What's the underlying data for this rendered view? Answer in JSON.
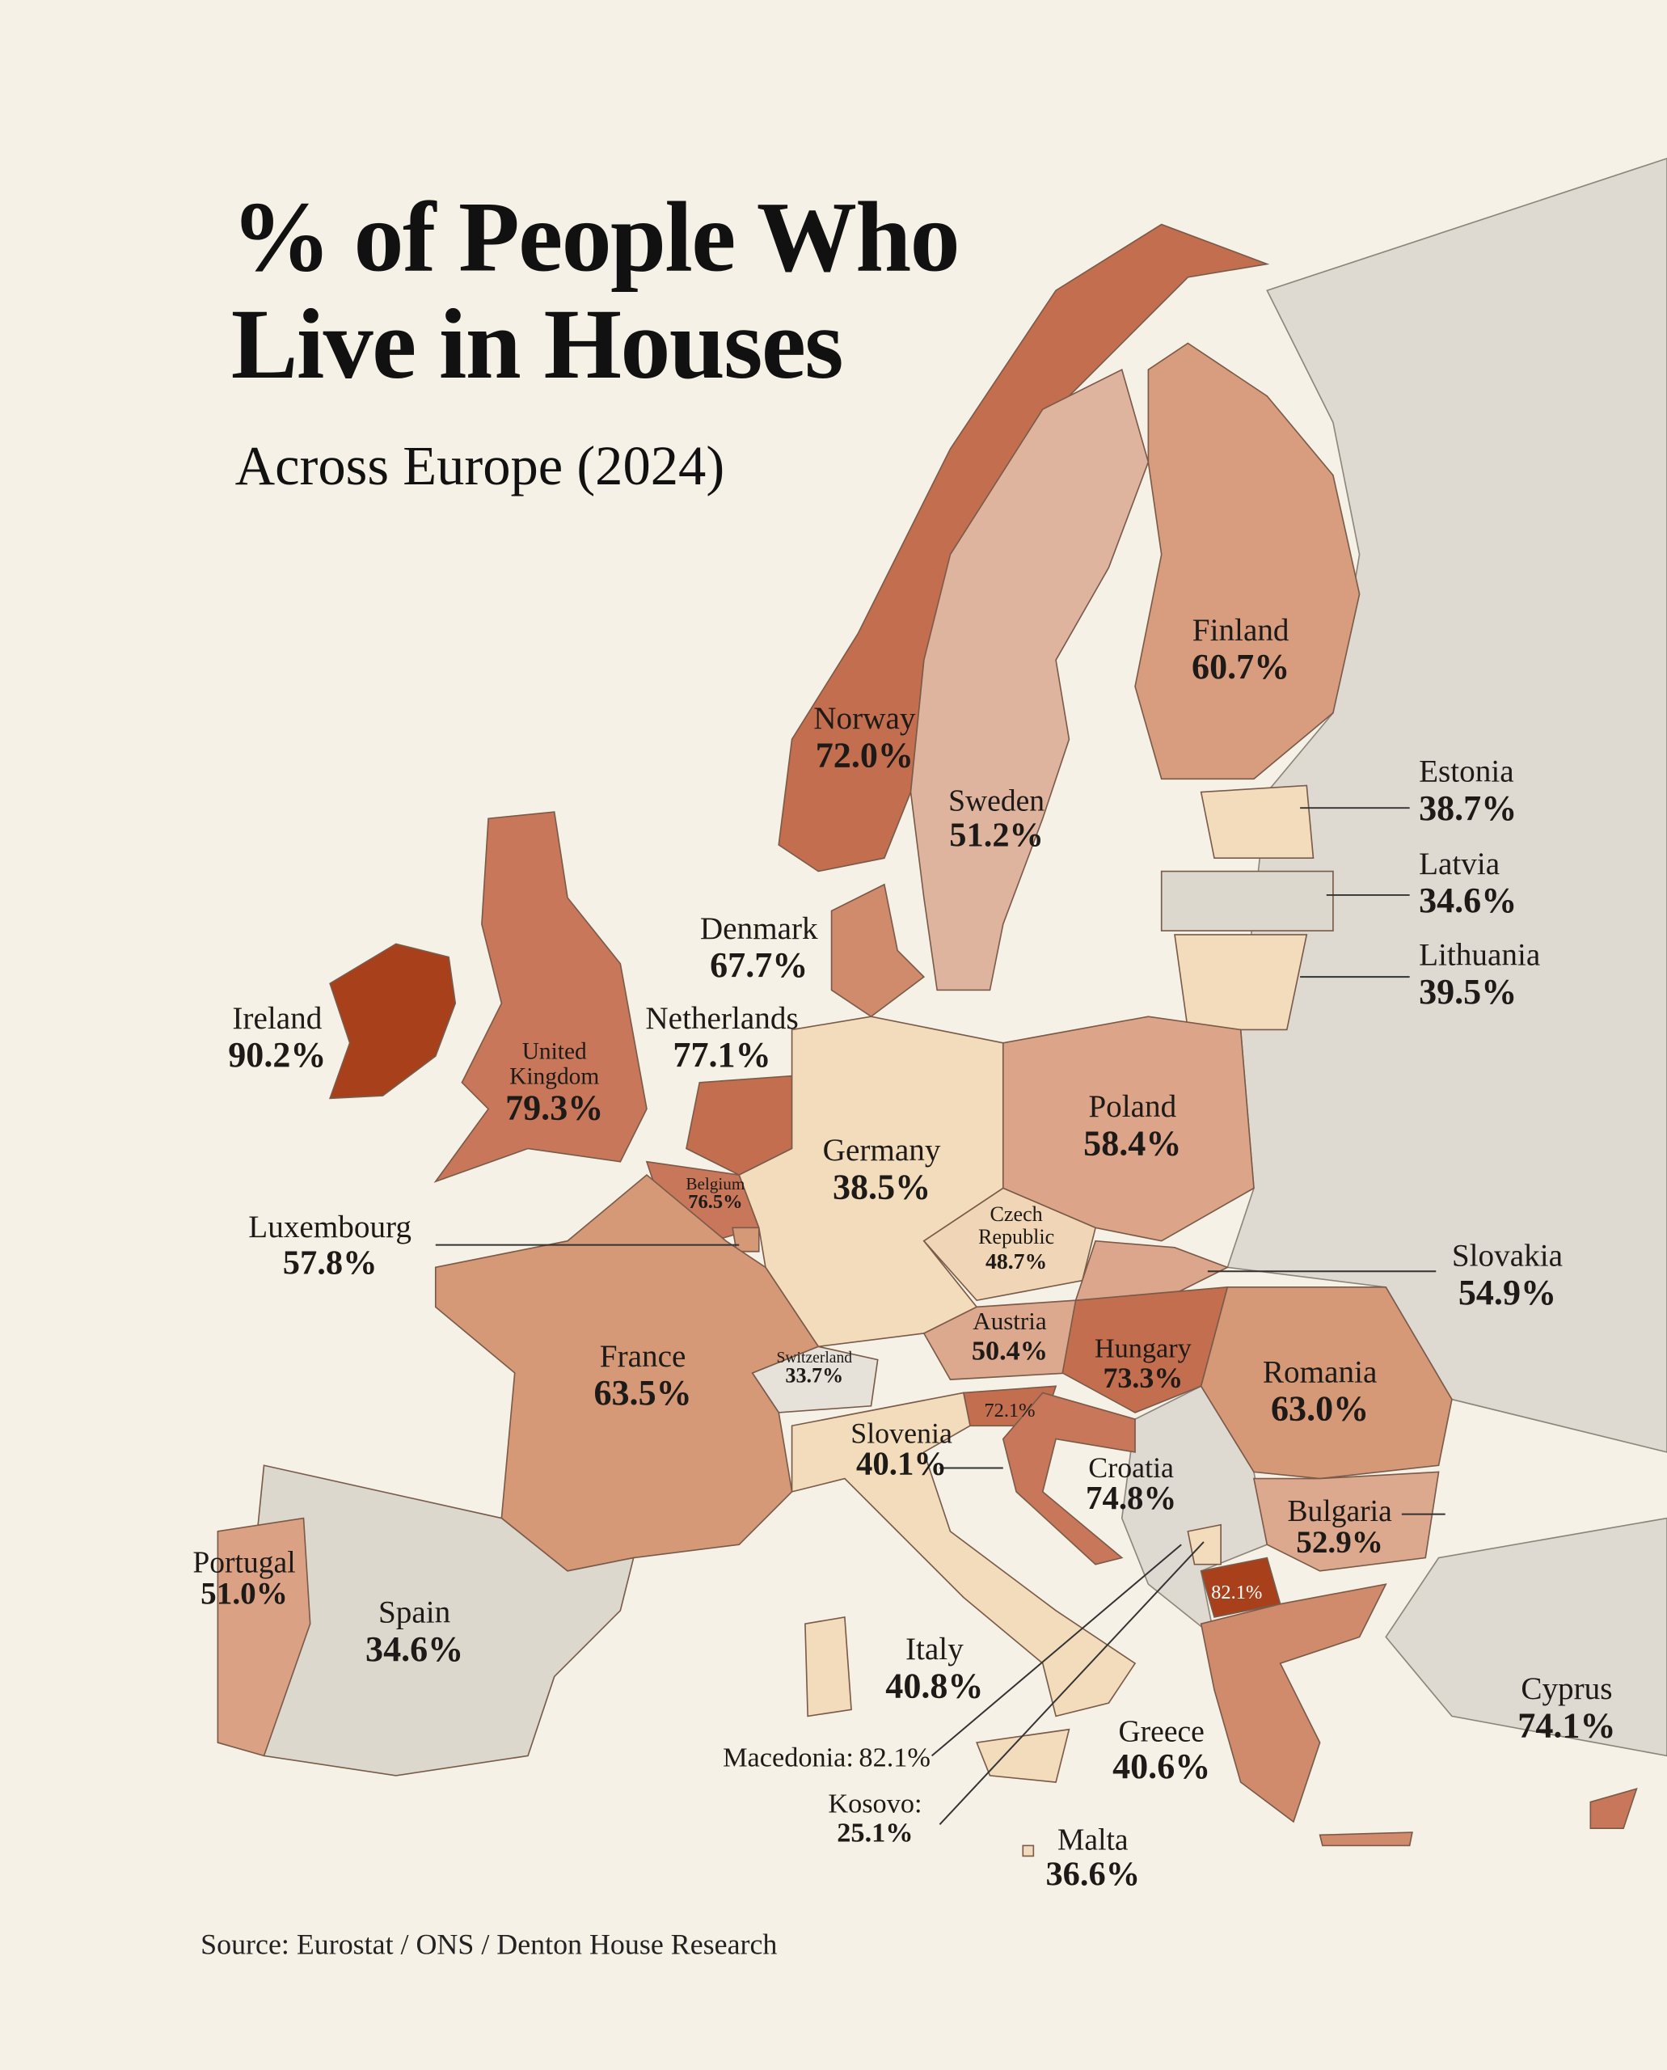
{
  "chart_data": {
    "type": "choropleth",
    "title": "% of People Who Live in Houses",
    "subtitle": "Across Europe (2024)",
    "source": "Source: Eurostat / ONS / Denton House Research",
    "regions": [
      {
        "name": "Ireland",
        "value": 90.2,
        "value_label": "90.2%",
        "color": "#a8401c"
      },
      {
        "name": "United Kingdom",
        "value": 79.3,
        "value_label": "79.3%",
        "color": "#c8775a"
      },
      {
        "name": "Norway",
        "value": 72.0,
        "value_label": "72.0%",
        "color": "#c46e50"
      },
      {
        "name": "Sweden",
        "value": 51.2,
        "value_label": "51.2%",
        "color": "#dfb49e"
      },
      {
        "name": "Finland",
        "value": 60.7,
        "value_label": "60.7%",
        "color": "#d89c7e"
      },
      {
        "name": "Estonia",
        "value": 38.7,
        "value_label": "38.7%",
        "color": "#f2dcbc"
      },
      {
        "name": "Latvia",
        "value": 34.6,
        "value_label": "34.6%",
        "color": "#dcd8ce"
      },
      {
        "name": "Lithuania",
        "value": 39.5,
        "value_label": "39.5%",
        "color": "#f2dcbc"
      },
      {
        "name": "Denmark",
        "value": 67.7,
        "value_label": "67.7%",
        "color": "#d08a6c"
      },
      {
        "name": "Netherlands",
        "value": 77.1,
        "value_label": "77.1%",
        "color": "#c46e50"
      },
      {
        "name": "Belgium",
        "value": 76.5,
        "value_label": "76.5%",
        "color": "#c8775a"
      },
      {
        "name": "Luxembourg",
        "value": 57.8,
        "value_label": "57.8%",
        "color": "#d59978"
      },
      {
        "name": "Germany",
        "value": 38.5,
        "value_label": "38.5%",
        "color": "#f2dcbc"
      },
      {
        "name": "Poland",
        "value": 58.4,
        "value_label": "58.4%",
        "color": "#dca488"
      },
      {
        "name": "Czech Republic",
        "value": 48.7,
        "value_label": "48.7%",
        "color": "#f0d6b6"
      },
      {
        "name": "Slovakia",
        "value": 54.9,
        "value_label": "54.9%",
        "color": "#dba68c"
      },
      {
        "name": "Austria",
        "value": 50.4,
        "value_label": "50.4%",
        "color": "#dca88e"
      },
      {
        "name": "Hungary",
        "value": 73.3,
        "value_label": "73.3%",
        "color": "#c46e50"
      },
      {
        "name": "Switzerland",
        "value": 33.7,
        "value_label": "33.7%",
        "color": "#e6e2da"
      },
      {
        "name": "France",
        "value": 63.5,
        "value_label": "63.5%",
        "color": "#d59978"
      },
      {
        "name": "Slovenia",
        "value": 40.1,
        "value_label": "40.1%",
        "color": "#c46e50"
      },
      {
        "name": "Croatia",
        "value": 74.8,
        "value_label": "74.8%",
        "color": "#c8775a"
      },
      {
        "name": "Romania",
        "value": 63.0,
        "value_label": "63.0%",
        "color": "#d59978"
      },
      {
        "name": "Bulgaria",
        "value": 52.9,
        "value_label": "52.9%",
        "color": "#dca88e"
      },
      {
        "name": "Macedonia:",
        "value": 82.1,
        "value_label": "82.1%",
        "color": "#a8401c"
      },
      {
        "name": "Kosovo:",
        "value": 25.1,
        "value_label": "25.1%",
        "color": "#f2dcbc"
      },
      {
        "name": "Greece",
        "value": 40.6,
        "value_label": "40.6%",
        "color": "#d08a6c"
      },
      {
        "name": "Spain",
        "value": 34.6,
        "value_label": "34.6%",
        "color": "#dcd8ce"
      },
      {
        "name": "Portugal",
        "value": 51.0,
        "value_label": "51.0%",
        "color": "#dba185"
      },
      {
        "name": "Italy",
        "value": 40.8,
        "value_label": "40.8%",
        "color": "#f2dcbc"
      },
      {
        "name": "Cyprus",
        "value": 74.1,
        "value_label": "74.1%",
        "color": "#c8775a"
      },
      {
        "name": "Malta",
        "value": 36.6,
        "value_label": "36.6%",
        "color": "#f2dcbc"
      }
    ],
    "annotations": [
      {
        "value": 72.1,
        "label": "72.1%"
      }
    ]
  }
}
